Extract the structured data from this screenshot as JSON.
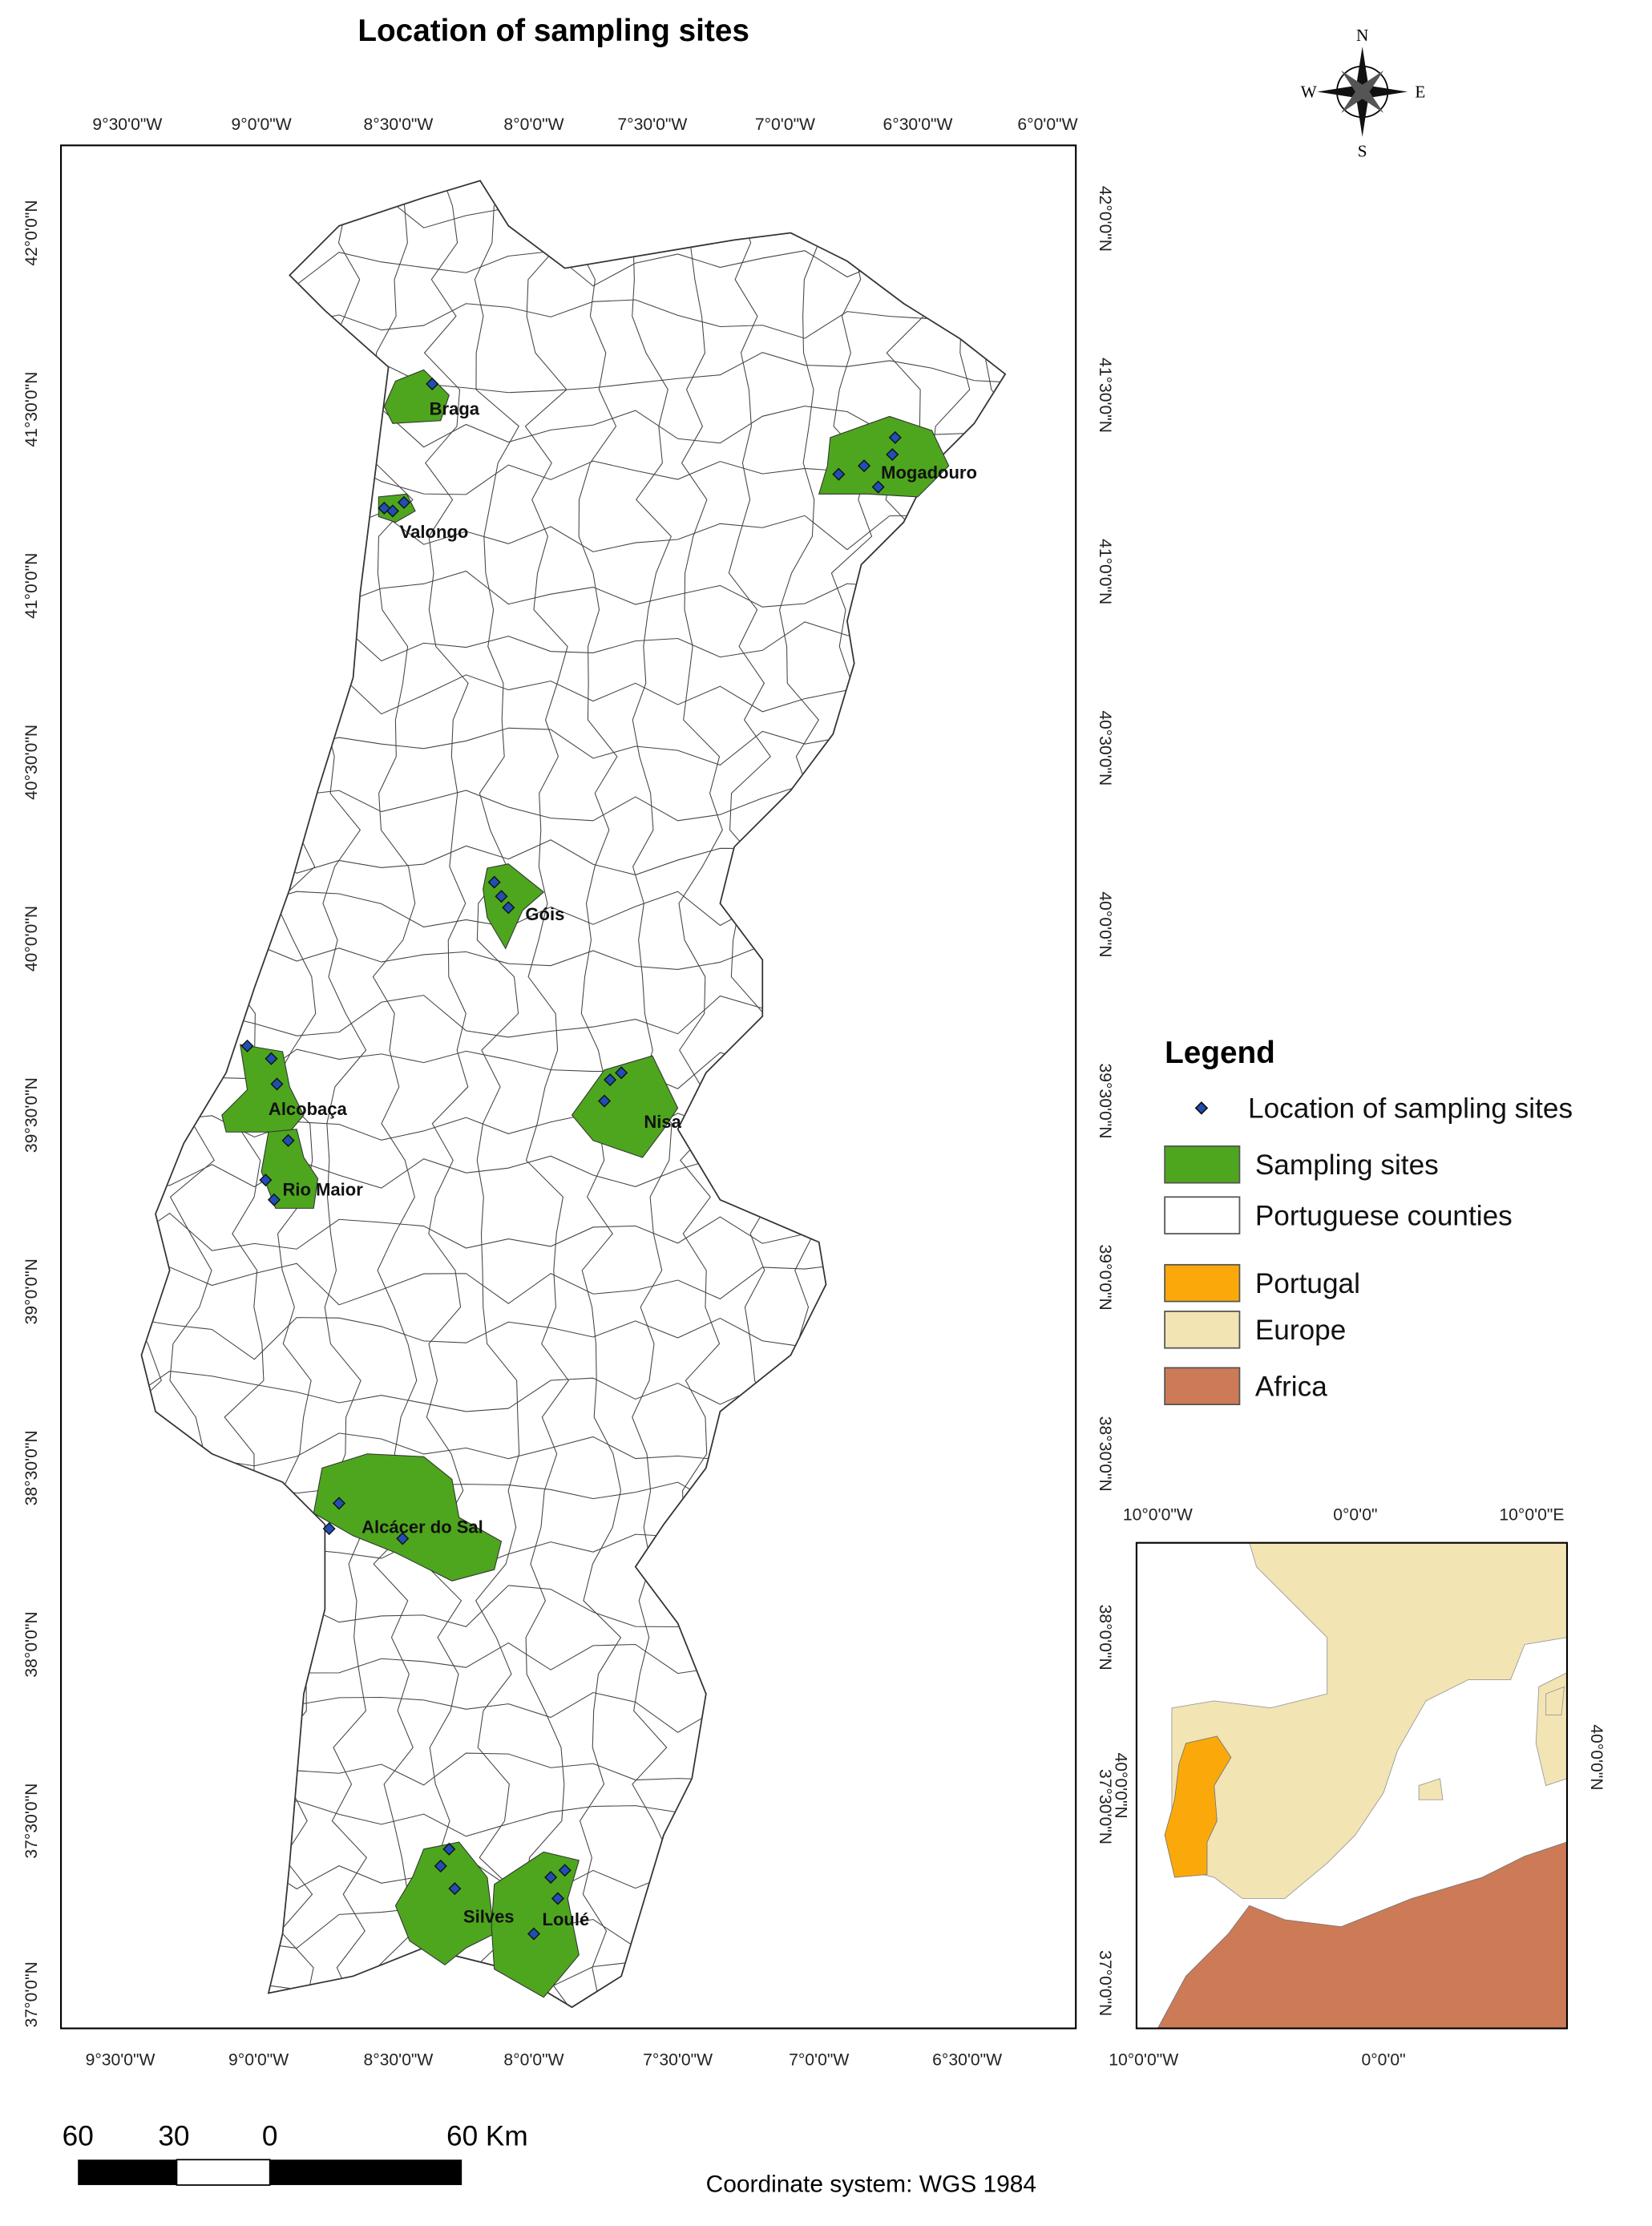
{
  "title": "Location of sampling sites",
  "compass": {
    "n": "N",
    "s": "S",
    "e": "E",
    "w": "W"
  },
  "main_map": {
    "top_labels": [
      "9°30'0\"W",
      "9°0'0\"W",
      "8°30'0\"W",
      "8°0'0\"W",
      "7°30'0\"W",
      "7°0'0\"W",
      "6°30'0\"W",
      "6°0'0\"W"
    ],
    "bottom_labels": [
      "9°30'0\"W",
      "9°0'0\"W",
      "8°30'0\"W",
      "8°0'0\"W",
      "7°30'0\"W",
      "7°0'0\"W",
      "6°30'0\"W"
    ],
    "left_labels": [
      "42°0'0\"N",
      "41°30'0\"N",
      "41°0'0\"N",
      "40°30'0\"N",
      "40°0'0\"N",
      "39°30'0\"N",
      "39°0'0\"N",
      "38°30'0\"N",
      "38°0'0\"N",
      "37°30'0\"N",
      "37°0'0\"N"
    ],
    "right_labels": [
      "42°0'0\"N",
      "41°30'0\"N",
      "41°0'0\"N",
      "40°30'0\"N",
      "40°0'0\"N",
      "39°30'0\"N",
      "39°0'0\"N",
      "38°30'0\"N",
      "38°0'0\"N",
      "37°30'0\"N",
      "37°0'0\"N"
    ],
    "sites": [
      "Braga",
      "Valongo",
      "Mogadouro",
      "Góis",
      "Alcobaça",
      "Rio Maior",
      "Nisa",
      "Alcácer do Sal",
      "Silves",
      "Loulé"
    ]
  },
  "legend": {
    "title": "Legend",
    "items": [
      "Location of sampling sites",
      "Sampling sites",
      "Portuguese counties",
      "Portugal",
      "Europe",
      "Africa"
    ]
  },
  "inset_map": {
    "top_labels": [
      "10°0'0\"W",
      "0°0'0\"",
      "10°0'0\"E"
    ],
    "bottom_labels": [
      "10°0'0\"W",
      "0°0'0\""
    ],
    "left_labels": [
      "40°0'0\"N"
    ],
    "right_labels": [
      "40°0'0\"N"
    ]
  },
  "scale_bar": {
    "labels": [
      "60",
      "30",
      "0",
      "60 Km"
    ]
  },
  "footer": "Coordinate system: WGS 1984"
}
